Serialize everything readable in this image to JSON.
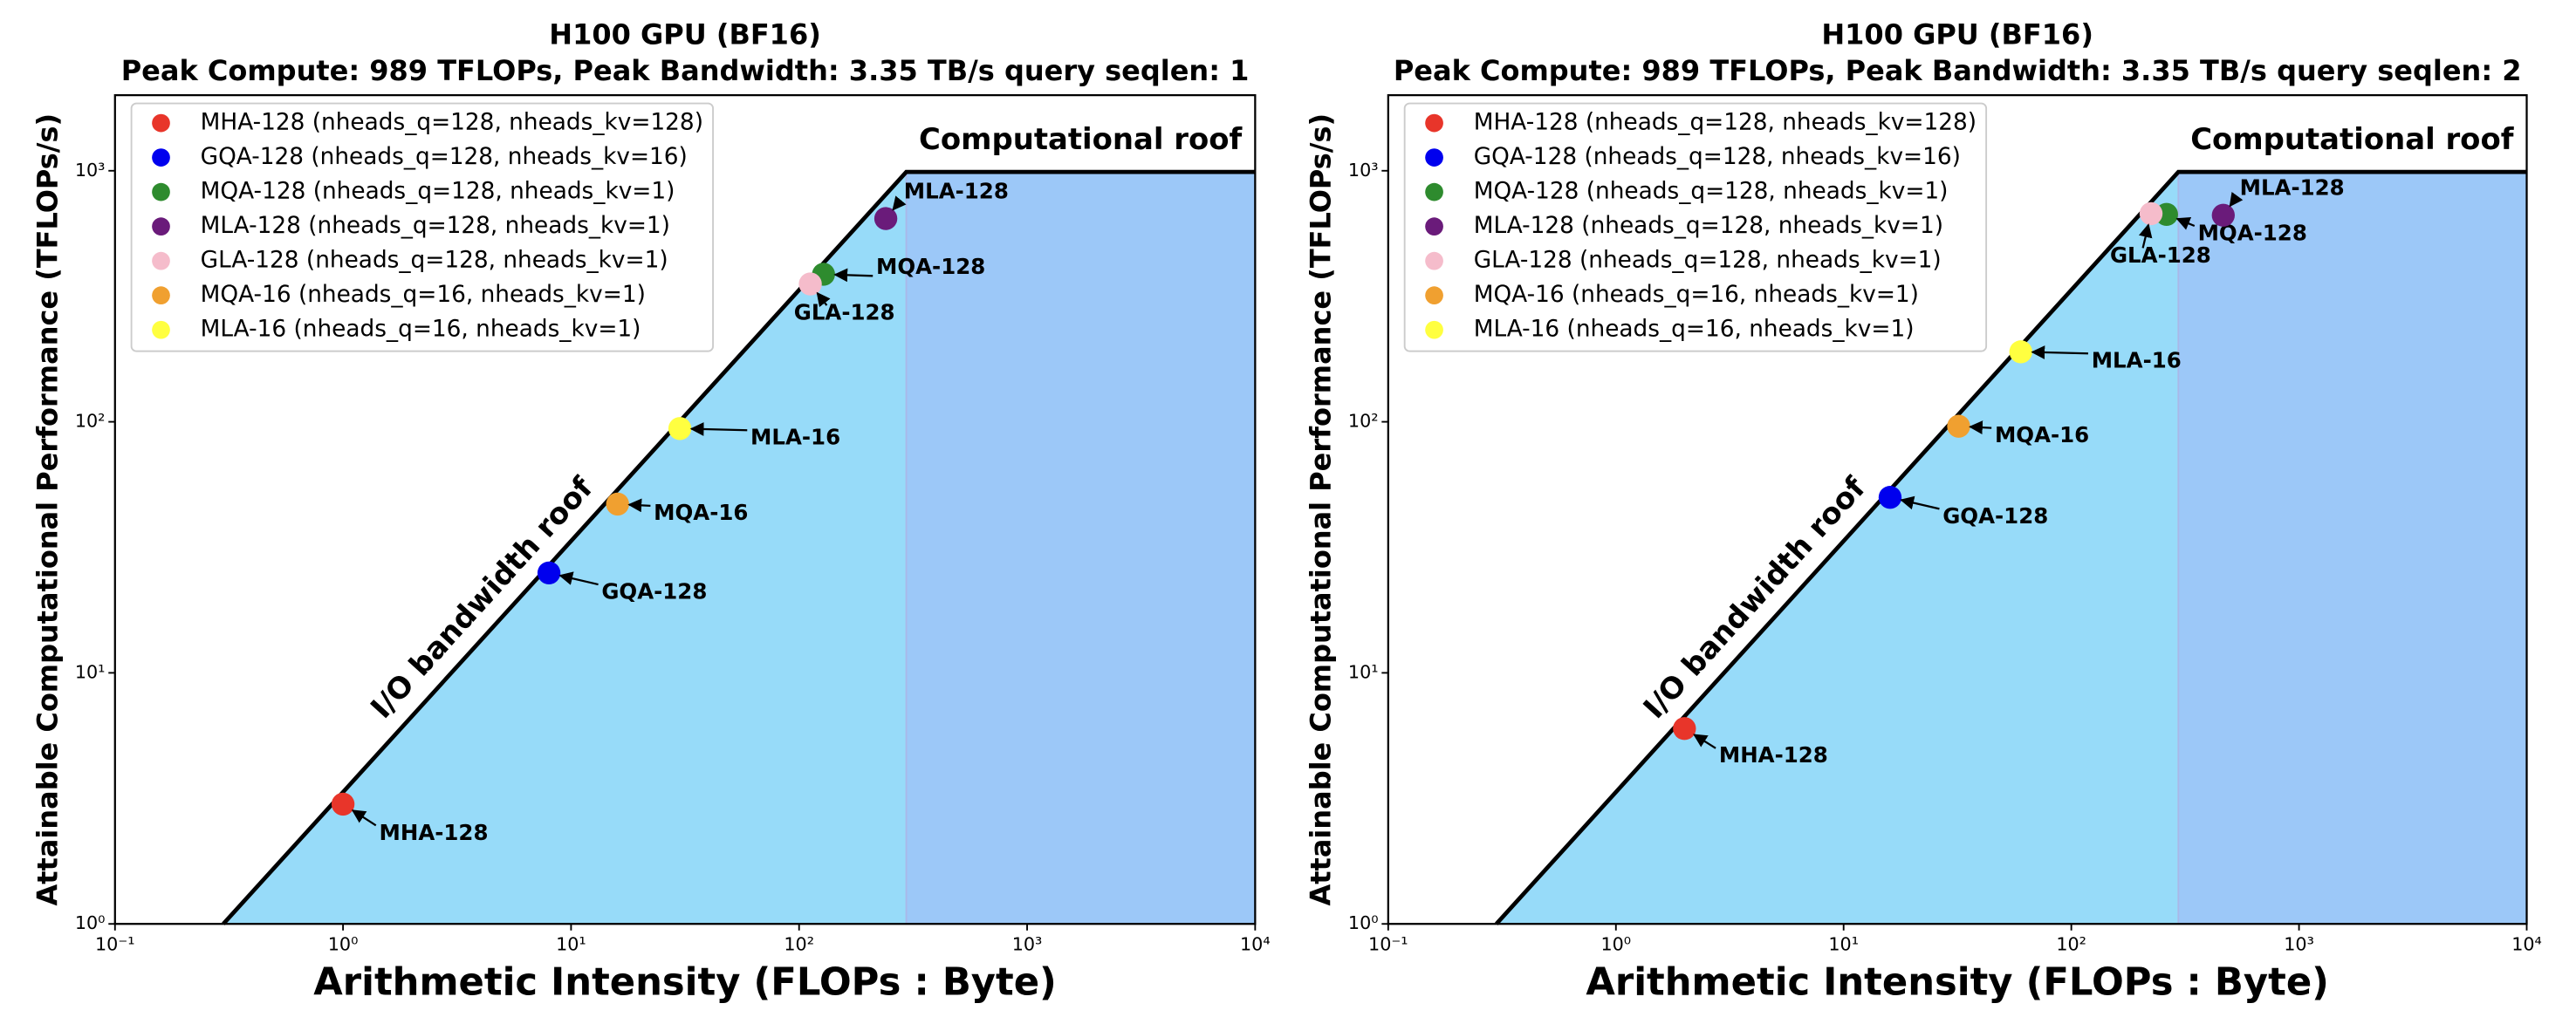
{
  "chart_data": [
    {
      "type": "scatter",
      "title": "H100 GPU (BF16)",
      "subtitle": "Peak Compute: 989 TFLOPs, Peak Bandwidth: 3.35 TB/s   query seqlen: 1",
      "x_label": "Arithmetic Intensity (FLOPs : Byte)",
      "y_label": "Attainable Computational Performance (TFLOPs/s)",
      "log_x": true,
      "log_y": true,
      "peak_compute": 989,
      "peak_bandwidth": 3.35,
      "annotations": [
        "Computational roof",
        "I/O bandwidth roof"
      ],
      "xlim": [
        0.1,
        10000
      ],
      "ylim": [
        1,
        2000
      ],
      "xticks": [
        {
          "value": 0.1,
          "label": "10⁻¹"
        },
        {
          "value": 1,
          "label": "10⁰"
        },
        {
          "value": 10,
          "label": "10¹"
        },
        {
          "value": 100,
          "label": "10²"
        },
        {
          "value": 1000,
          "label": "10³"
        },
        {
          "value": 10000,
          "label": "10⁴"
        }
      ],
      "yticks": [
        {
          "value": 1,
          "label": "10⁰"
        },
        {
          "value": 10,
          "label": "10¹"
        },
        {
          "value": 100,
          "label": "10²"
        },
        {
          "value": 1000,
          "label": "10³"
        }
      ],
      "legend": "upper left",
      "series": [
        {
          "name": "MHA-128 (nheads_q=128, nheads_kv=128)",
          "label": "MHA-128",
          "color": "#e8352a",
          "x": [
            1
          ],
          "values": [
            3
          ]
        },
        {
          "name": "GQA-128 (nheads_q=128, nheads_kv=16)",
          "label": "GQA-128",
          "color": "#0000ee",
          "x": [
            8
          ],
          "values": [
            25
          ]
        },
        {
          "name": "MQA-128 (nheads_q=128, nheads_kv=1)",
          "label": "MQA-128",
          "color": "#2e8b2e",
          "x": [
            128
          ],
          "values": [
            387
          ]
        },
        {
          "name": "MLA-128 (nheads_q=128, nheads_kv=1)",
          "label": "MLA-128",
          "color": "#6a1b7a",
          "x": [
            240
          ],
          "values": [
            645
          ]
        },
        {
          "name": "GLA-128 (nheads_q=128, nheads_kv=1)",
          "label": "GLA-128",
          "color": "#f5bccb",
          "x": [
            112
          ],
          "values": [
            354
          ]
        },
        {
          "name": "MQA-16 (nheads_q=16, nheads_kv=1)",
          "label": "MQA-16",
          "color": "#f0a030",
          "x": [
            16
          ],
          "values": [
            47
          ]
        },
        {
          "name": "MLA-16 (nheads_q=16, nheads_kv=1)",
          "label": "MLA-16",
          "color": "#ffff40",
          "x": [
            30
          ],
          "values": [
            94
          ]
        }
      ]
    },
    {
      "type": "scatter",
      "title": "H100 GPU (BF16)",
      "subtitle": "Peak Compute: 989 TFLOPs, Peak Bandwidth: 3.35 TB/s   query seqlen: 2",
      "x_label": "Arithmetic Intensity (FLOPs : Byte)",
      "y_label": "Attainable Computational Performance (TFLOPs/s)",
      "log_x": true,
      "log_y": true,
      "peak_compute": 989,
      "peak_bandwidth": 3.35,
      "annotations": [
        "Computational roof",
        "I/O bandwidth roof"
      ],
      "xlim": [
        0.1,
        10000
      ],
      "ylim": [
        1,
        2000
      ],
      "xticks": [
        {
          "value": 0.1,
          "label": "10⁻¹"
        },
        {
          "value": 1,
          "label": "10⁰"
        },
        {
          "value": 10,
          "label": "10¹"
        },
        {
          "value": 100,
          "label": "10²"
        },
        {
          "value": 1000,
          "label": "10³"
        },
        {
          "value": 10000,
          "label": "10⁴"
        }
      ],
      "yticks": [
        {
          "value": 1,
          "label": "10⁰"
        },
        {
          "value": 10,
          "label": "10¹"
        },
        {
          "value": 100,
          "label": "10²"
        },
        {
          "value": 1000,
          "label": "10³"
        }
      ],
      "legend": "upper left",
      "series": [
        {
          "name": "MHA-128 (nheads_q=128, nheads_kv=128)",
          "label": "MHA-128",
          "color": "#e8352a",
          "x": [
            2
          ],
          "values": [
            6
          ]
        },
        {
          "name": "GQA-128 (nheads_q=128, nheads_kv=16)",
          "label": "GQA-128",
          "color": "#0000ee",
          "x": [
            16
          ],
          "values": [
            50
          ]
        },
        {
          "name": "MQA-128 (nheads_q=128, nheads_kv=1)",
          "label": "MQA-128",
          "color": "#2e8b2e",
          "x": [
            262
          ],
          "values": [
            670
          ]
        },
        {
          "name": "MLA-128 (nheads_q=128, nheads_kv=1)",
          "label": "MLA-128",
          "color": "#6a1b7a",
          "x": [
            465
          ],
          "values": [
            665
          ]
        },
        {
          "name": "GLA-128 (nheads_q=128, nheads_kv=1)",
          "label": "GLA-128",
          "color": "#f5bccb",
          "x": [
            224
          ],
          "values": [
            675
          ]
        },
        {
          "name": "MQA-16 (nheads_q=16, nheads_kv=1)",
          "label": "MQA-16",
          "color": "#f0a030",
          "x": [
            32
          ],
          "values": [
            96
          ]
        },
        {
          "name": "MLA-16 (nheads_q=16, nheads_kv=1)",
          "label": "MLA-16",
          "color": "#ffff40",
          "x": [
            60
          ],
          "values": [
            190
          ]
        }
      ]
    }
  ]
}
